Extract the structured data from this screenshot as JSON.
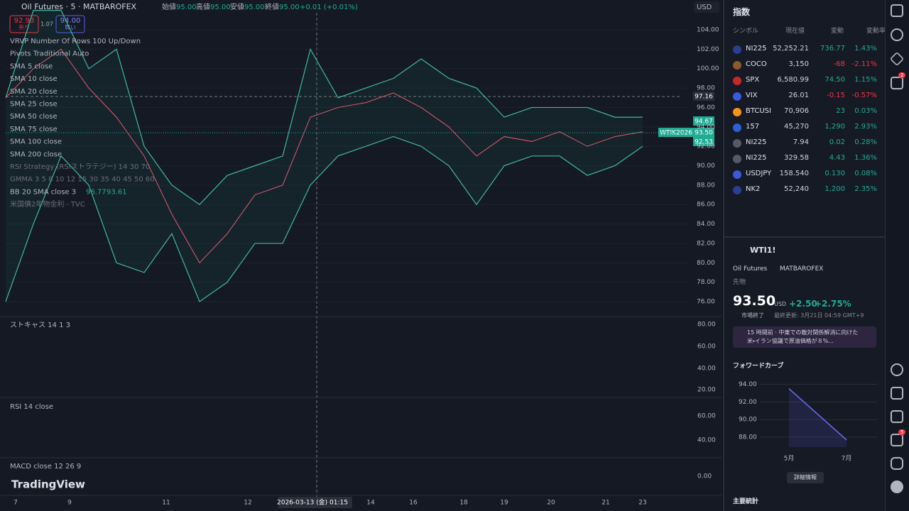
{
  "header": {
    "symbol": "Oil Futures · 5 · MATBAROFEX",
    "open_label": "始値",
    "open": "95.00",
    "high_label": "高値",
    "high": "95.00",
    "low_label": "安値",
    "low": "95.00",
    "close_label": "終値",
    "close": "95.00",
    "change": "+0.01 (+0.01%)",
    "currency": "USD"
  },
  "trade": {
    "sell_price": "92.93",
    "sell_label": "売り",
    "spread": "1.07",
    "buy_price": "94.00",
    "buy_label": "買い"
  },
  "indicators": [
    "VRVP Number Of Rows 100 Up/Down",
    "Pivots Traditional Auto",
    "SMA 5 close",
    "SMA 10 close",
    "SMA 20 close",
    "SMA 25 close",
    "SMA 50 close",
    "SMA 75 close",
    "SMA 100 close",
    "SMA 200 close",
    "RSI Strategy (RSIストラテジー) 14 30 70",
    "GMMA 3 5 8 10 12 15 30 35 40 45 50 60",
    "BB 20 SMA close 3",
    "米国債2年物金利 · TVC"
  ],
  "bb_values": [
    "96.77",
    "93.61"
  ],
  "price_axis": {
    "ylim": [
      76,
      104
    ],
    "ticks": [
      {
        "value": 104,
        "label": "104.00"
      },
      {
        "value": 102,
        "label": "102.00"
      },
      {
        "value": 100,
        "label": "100.00"
      },
      {
        "value": 98,
        "label": "98.00"
      },
      {
        "value": 96,
        "label": "96.00"
      },
      {
        "value": 94,
        "label": "94.00"
      },
      {
        "value": 92,
        "label": "92.00"
      },
      {
        "value": 90,
        "label": "90.00"
      },
      {
        "value": 88,
        "label": "88.00"
      },
      {
        "value": 86,
        "label": "86.00"
      },
      {
        "value": 84,
        "label": "84.00"
      },
      {
        "value": 82,
        "label": "82.00"
      },
      {
        "value": 80,
        "label": "80.00"
      },
      {
        "value": 78,
        "label": "78.00"
      },
      {
        "value": 76,
        "label": "76.00"
      }
    ]
  },
  "price_tags": {
    "crosshair": "97.16",
    "upper": "94.67",
    "symbol": "WTIK2026",
    "last": "93.50",
    "lower": "92.53"
  },
  "series": {
    "close": [
      97,
      100,
      102,
      98,
      95,
      91,
      85,
      80,
      83,
      87,
      88,
      95,
      96,
      96.5,
      97.5,
      96,
      94,
      91,
      93,
      92.5,
      93.5,
      92,
      93,
      93.5
    ],
    "upper": [
      97,
      106,
      106,
      100,
      102,
      92,
      88,
      86,
      89,
      90,
      91,
      102,
      97,
      98,
      99,
      101,
      99,
      98,
      95,
      96,
      96,
      96,
      95,
      95
    ],
    "lower": [
      76,
      84,
      91,
      88,
      80,
      79,
      83,
      76,
      78,
      82,
      82,
      88,
      91,
      92,
      93,
      92,
      90,
      86,
      90,
      91,
      91,
      89,
      90,
      92
    ]
  },
  "stoch": {
    "label": "ストキャス 14 1 3",
    "ticks": [
      "80.00",
      "60.00",
      "40.00",
      "20.00"
    ]
  },
  "rsi": {
    "label": "RSI 14 close",
    "ticks": [
      "60.00",
      "40.00"
    ]
  },
  "macd": {
    "label": "MACD close 12 26 9",
    "ticks": [
      "0.00"
    ]
  },
  "time_axis": [
    "7",
    "9",
    "11",
    "12",
    "2026-03-13 (金)  01:15",
    "14",
    "16",
    "18",
    "19",
    "20",
    "21",
    "23"
  ],
  "logo": "TradingView",
  "watchlist": {
    "title": "指数",
    "columns": [
      "シンボル",
      "現在値",
      "変動",
      "変動率"
    ],
    "rows": [
      {
        "symbol": "NI225",
        "price": "52,252.21",
        "change": "736.77",
        "pct": "1.43%",
        "color": "#22ab94",
        "icon_color": "#2c3e8f"
      },
      {
        "symbol": "COCO",
        "price": "3,150",
        "change": "-68",
        "pct": "-2.11%",
        "color": "#f23645",
        "icon_color": "#8b5a2b"
      },
      {
        "symbol": "SPX",
        "price": "6,580.99",
        "change": "74.50",
        "pct": "1.15%",
        "color": "#22ab94",
        "icon_color": "#c62828"
      },
      {
        "symbol": "VIX",
        "price": "26.01",
        "change": "-0.15",
        "pct": "-0.57%",
        "color": "#f23645",
        "icon_color": "#3a5bd9"
      },
      {
        "symbol": "BTCUSI",
        "price": "70,906",
        "change": "23",
        "pct": "0.03%",
        "color": "#22ab94",
        "icon_color": "#f7931a"
      },
      {
        "symbol": "157",
        "price": "45,270",
        "change": "1,290",
        "pct": "2.93%",
        "color": "#22ab94",
        "icon_color": "#2c5fd4"
      },
      {
        "symbol": "NI225",
        "price": "7.94",
        "change": "0.02",
        "pct": "0.28%",
        "color": "#22ab94",
        "icon_color": "#555a66"
      },
      {
        "symbol": "NI225",
        "price": "329.58",
        "change": "4.43",
        "pct": "1.36%",
        "color": "#22ab94",
        "icon_color": "#555a66"
      },
      {
        "symbol": "USDJPY",
        "price": "158.540",
        "change": "0.130",
        "pct": "0.08%",
        "color": "#22ab94",
        "icon_color": "#3a5bd9"
      },
      {
        "symbol": "NK2",
        "price": "52,240",
        "change": "1,200",
        "pct": "2.35%",
        "color": "#22ab94",
        "icon_color": "#2c3e8f"
      }
    ]
  },
  "detail": {
    "ticker": "WTI1!",
    "name": "Oil Futures",
    "exchange": "MATBAROFEX",
    "kind": "先物",
    "price": "93.50",
    "currency": "USD",
    "change": "+2.50",
    "pct": "+2.75%",
    "status": "市場終了",
    "updated": "最終更新: 3月21日 04:59 GMT+9",
    "news": "15 時間前 · 中東での敵対関係解消に向けた米・イラン協議で原油価格が８%...",
    "curve_title": "フォワードカーブ",
    "more": "詳細情報",
    "stats": "主要統計"
  },
  "forward_curve": {
    "x": [
      "5月",
      "7月"
    ],
    "values": [
      93.5,
      87.7
    ],
    "ylim": [
      87.2,
      94.6
    ],
    "yticks": [
      {
        "value": 94,
        "label": "94.00"
      },
      {
        "value": 92,
        "label": "92.00"
      },
      {
        "value": 90,
        "label": "90.00"
      },
      {
        "value": 88,
        "label": "88.00"
      }
    ]
  },
  "badges": [
    "2",
    "5"
  ]
}
